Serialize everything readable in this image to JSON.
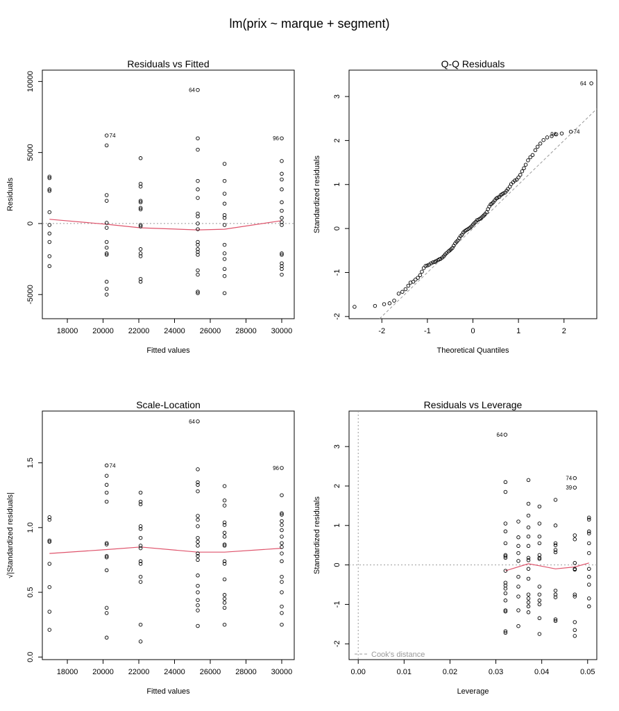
{
  "main_title": "lm(prix ~ marque + segment)",
  "colors": {
    "points": "#000000",
    "smooth": "#df536b",
    "refline": "#999999",
    "frame": "#000000"
  },
  "chart_data": [
    {
      "type": "scatter",
      "title": "Residuals vs Fitted",
      "xlabel": "Fitted values",
      "ylabel": "Residuals",
      "xlim": [
        16600,
        30700
      ],
      "ylim": [
        -6700,
        10800
      ],
      "xticks": [
        18000,
        20000,
        22000,
        24000,
        26000,
        28000,
        30000
      ],
      "yticks": [
        -5000,
        0,
        5000,
        10000
      ],
      "refline": {
        "type": "h",
        "value": 0,
        "style": "dotted"
      },
      "labels": [
        {
          "text": "74",
          "x": 20200,
          "y": 6200
        },
        {
          "text": "64",
          "x": 25300,
          "y": 9400
        },
        {
          "text": "96",
          "x": 30000,
          "y": 6000
        }
      ],
      "smooth": {
        "x": [
          17000,
          20200,
          22100,
          25300,
          26800,
          30000
        ],
        "y": [
          300,
          -50,
          -300,
          -450,
          -400,
          200
        ]
      },
      "series": [
        {
          "x": 17000,
          "y": [
            3300,
            3200,
            2400,
            2300,
            800,
            -100,
            -700,
            -1300,
            -2300,
            -3000
          ]
        },
        {
          "x": 20200,
          "y": [
            6200,
            5500,
            2000,
            1600,
            50,
            -300,
            -1300,
            -1700,
            -2100,
            -2200,
            -4100,
            -4600,
            -5000
          ]
        },
        {
          "x": 22100,
          "y": [
            4600,
            2800,
            2600,
            1600,
            1500,
            1100,
            1000,
            -100,
            -200,
            -1800,
            -2100,
            -2300,
            -3900,
            -4100
          ]
        },
        {
          "x": 25300,
          "y": [
            9400,
            6000,
            5200,
            3000,
            2400,
            1800,
            700,
            500,
            0,
            -400,
            -1300,
            -1500,
            -1800,
            -2000,
            -2200,
            -3300,
            -3600,
            -4800,
            -4900
          ]
        },
        {
          "x": 26800,
          "y": [
            4200,
            3000,
            2100,
            1400,
            600,
            400,
            -100,
            -1500,
            -2100,
            -2500,
            -3200,
            -3700,
            -4900
          ]
        },
        {
          "x": 30000,
          "y": [
            6000,
            4400,
            3500,
            3100,
            2400,
            1500,
            900,
            400,
            100,
            -100,
            -2100,
            -2200,
            -2800,
            -3000,
            -3200,
            -3600
          ]
        }
      ]
    },
    {
      "type": "scatter",
      "title": "Q-Q Residuals",
      "xlabel": "Theoretical Quantiles",
      "ylabel": "Standardized residuals",
      "xlim": [
        -2.72,
        2.72
      ],
      "ylim": [
        -2.05,
        3.6
      ],
      "xticks": [
        -2,
        -1,
        0,
        1,
        2
      ],
      "yticks": [
        -2,
        -1,
        0,
        1,
        2,
        3
      ],
      "refline": {
        "type": "qq",
        "slope": 1.0,
        "intercept": 0.0,
        "style": "dashed"
      },
      "labels": [
        {
          "text": "64",
          "x": 2.55,
          "y": 3.3
        },
        {
          "text": "96",
          "x": 1.9,
          "y": 2.15
        },
        {
          "text": "74",
          "x": 2.15,
          "y": 2.2
        }
      ],
      "points": {
        "x": [
          -2.6,
          -2.15,
          -1.95,
          -1.83,
          -1.73,
          -1.63,
          -1.55,
          -1.48,
          -1.42,
          -1.37,
          -1.31,
          -1.26,
          -1.21,
          -1.16,
          -1.12,
          -1.08,
          -1.04,
          -1.0,
          -0.96,
          -0.92,
          -0.88,
          -0.84,
          -0.81,
          -0.77,
          -0.74,
          -0.71,
          -0.67,
          -0.64,
          -0.61,
          -0.58,
          -0.54,
          -0.51,
          -0.48,
          -0.45,
          -0.42,
          -0.39,
          -0.36,
          -0.33,
          -0.3,
          -0.27,
          -0.24,
          -0.21,
          -0.18,
          -0.15,
          -0.12,
          -0.09,
          -0.06,
          -0.03,
          0.0,
          0.03,
          0.06,
          0.09,
          0.12,
          0.15,
          0.18,
          0.21,
          0.24,
          0.27,
          0.3,
          0.33,
          0.36,
          0.39,
          0.42,
          0.45,
          0.48,
          0.51,
          0.54,
          0.58,
          0.61,
          0.64,
          0.67,
          0.71,
          0.74,
          0.77,
          0.81,
          0.84,
          0.88,
          0.92,
          0.96,
          1.0,
          1.04,
          1.08,
          1.12,
          1.16,
          1.21,
          1.26,
          1.31,
          1.37,
          1.42,
          1.48,
          1.55,
          1.63,
          1.73,
          1.83,
          1.95,
          2.15,
          2.6
        ],
        "y": [
          -1.78,
          -1.76,
          -1.72,
          -1.7,
          -1.64,
          -1.48,
          -1.44,
          -1.38,
          -1.3,
          -1.23,
          -1.21,
          -1.16,
          -1.12,
          -1.06,
          -0.98,
          -0.9,
          -0.85,
          -0.84,
          -0.82,
          -0.79,
          -0.77,
          -0.76,
          -0.74,
          -0.72,
          -0.7,
          -0.69,
          -0.66,
          -0.63,
          -0.59,
          -0.56,
          -0.52,
          -0.5,
          -0.47,
          -0.44,
          -0.39,
          -0.34,
          -0.3,
          -0.27,
          -0.22,
          -0.17,
          -0.14,
          -0.09,
          -0.06,
          -0.04,
          -0.02,
          0.0,
          0.02,
          0.05,
          0.09,
          0.12,
          0.15,
          0.19,
          0.2,
          0.22,
          0.24,
          0.27,
          0.3,
          0.33,
          0.37,
          0.44,
          0.5,
          0.55,
          0.57,
          0.6,
          0.64,
          0.68,
          0.7,
          0.72,
          0.76,
          0.78,
          0.8,
          0.82,
          0.86,
          0.9,
          0.95,
          1.01,
          1.05,
          1.09,
          1.11,
          1.16,
          1.22,
          1.3,
          1.37,
          1.45,
          1.55,
          1.62,
          1.67,
          1.78,
          1.86,
          1.93,
          2.01,
          2.07,
          2.1,
          2.14,
          2.16,
          2.2,
          3.3
        ]
      }
    },
    {
      "type": "scatter",
      "title": "Scale-Location",
      "xlabel": "Fitted values",
      "ylabel": "√|Standardized residuals|",
      "xlim": [
        16600,
        30700
      ],
      "ylim": [
        -0.02,
        1.9
      ],
      "xticks": [
        18000,
        20000,
        22000,
        24000,
        26000,
        28000,
        30000
      ],
      "yticks": [
        0.0,
        0.5,
        1.0,
        1.5
      ],
      "labels": [
        {
          "text": "74",
          "x": 20200,
          "y": 1.48
        },
        {
          "text": "64",
          "x": 25300,
          "y": 1.82
        },
        {
          "text": "96",
          "x": 30000,
          "y": 1.46
        }
      ],
      "smooth": {
        "x": [
          17000,
          20200,
          22100,
          25300,
          26800,
          30000
        ],
        "y": [
          0.8,
          0.83,
          0.85,
          0.81,
          0.81,
          0.84
        ]
      },
      "series": [
        {
          "x": 17000,
          "y": [
            1.08,
            1.06,
            0.9,
            0.89,
            0.72,
            0.54,
            0.35,
            0.21
          ]
        },
        {
          "x": 20200,
          "y": [
            1.48,
            1.4,
            1.33,
            1.27,
            1.2,
            0.88,
            0.87,
            0.78,
            0.77,
            0.67,
            0.38,
            0.34,
            0.15
          ]
        },
        {
          "x": 22100,
          "y": [
            1.27,
            1.2,
            1.18,
            1.01,
            0.99,
            0.92,
            0.86,
            0.84,
            0.74,
            0.72,
            0.62,
            0.58,
            0.25,
            0.12
          ]
        },
        {
          "x": 25300,
          "y": [
            1.82,
            1.45,
            1.35,
            1.33,
            1.28,
            1.09,
            1.06,
            1.01,
            0.92,
            0.89,
            0.86,
            0.8,
            0.78,
            0.75,
            0.63,
            0.55,
            0.5,
            0.44,
            0.4,
            0.36,
            0.24
          ]
        },
        {
          "x": 26800,
          "y": [
            1.32,
            1.21,
            1.17,
            1.04,
            1.02,
            0.96,
            0.93,
            0.87,
            0.86,
            0.74,
            0.72,
            0.6,
            0.48,
            0.45,
            0.42,
            0.38,
            0.25
          ]
        },
        {
          "x": 30000,
          "y": [
            1.46,
            1.25,
            1.11,
            1.1,
            1.05,
            1.02,
            0.98,
            0.93,
            0.88,
            0.85,
            0.8,
            0.74,
            0.62,
            0.58,
            0.5,
            0.39,
            0.34,
            0.25
          ]
        }
      ]
    },
    {
      "type": "scatter",
      "title": "Residuals vs Leverage",
      "xlabel": "Leverage",
      "ylabel": "Standardized residuals",
      "xlim": [
        -0.002,
        0.052
      ],
      "ylim": [
        -2.4,
        3.9
      ],
      "xticks": [
        0.0,
        0.01,
        0.02,
        0.03,
        0.04,
        0.05
      ],
      "xticklabels": [
        "0.00",
        "0.01",
        "0.02",
        "0.03",
        "0.04",
        "0.05"
      ],
      "yticks": [
        -2,
        -1,
        0,
        1,
        2,
        3
      ],
      "refline": {
        "type": "hv",
        "h": 0,
        "v": 0,
        "style": "dotted"
      },
      "legend": {
        "text": "Cook's distance",
        "position": "bottom-left"
      },
      "labels": [
        {
          "text": "64",
          "x": 0.0321,
          "y": 3.3
        },
        {
          "text": "74",
          "x": 0.0472,
          "y": 2.2
        },
        {
          "text": "39",
          "x": 0.0472,
          "y": 1.96
        }
      ],
      "smooth": {
        "x": [
          0.0321,
          0.0371,
          0.0395,
          0.043,
          0.0472,
          0.0503
        ],
        "y": [
          -0.15,
          0.03,
          -0.02,
          -0.1,
          -0.05,
          0.05
        ]
      },
      "series": [
        {
          "x": 0.0321,
          "y": [
            3.3,
            2.1,
            1.85,
            1.05,
            0.85,
            0.55,
            0.25,
            0.22,
            0.18,
            -0.15,
            -0.45,
            -0.52,
            -0.6,
            -0.72,
            -0.9,
            -1.15,
            -1.18,
            -1.68,
            -1.72
          ]
        },
        {
          "x": 0.0349,
          "y": [
            1.1,
            0.7,
            0.48,
            0.3,
            0.1,
            -0.3,
            -0.55,
            -0.8,
            -1.15,
            -1.55
          ]
        },
        {
          "x": 0.0371,
          "y": [
            2.15,
            1.55,
            1.25,
            0.95,
            0.72,
            0.48,
            0.18,
            0.12,
            -0.1,
            -0.35,
            -0.75,
            -0.85,
            -0.95,
            -1.05,
            -1.2
          ]
        },
        {
          "x": 0.0395,
          "y": [
            1.48,
            1.05,
            0.72,
            0.55,
            0.25,
            0.18,
            0.15,
            -0.55,
            -0.75,
            -0.9,
            -1.0,
            -1.35,
            -1.75
          ]
        },
        {
          "x": 0.043,
          "y": [
            1.65,
            1.0,
            0.55,
            0.5,
            0.38,
            0.32,
            -0.65,
            -0.75,
            -0.82,
            -1.38,
            -1.42
          ]
        },
        {
          "x": 0.0472,
          "y": [
            2.2,
            1.96,
            0.75,
            0.65,
            0.05,
            -0.1,
            -0.12,
            -0.75,
            -0.8,
            -1.45,
            -1.65,
            -1.8
          ]
        },
        {
          "x": 0.0503,
          "y": [
            1.2,
            1.15,
            0.85,
            0.8,
            0.55,
            0.3,
            -0.1,
            -0.3,
            -0.5,
            -0.85,
            -1.05
          ]
        }
      ]
    }
  ]
}
